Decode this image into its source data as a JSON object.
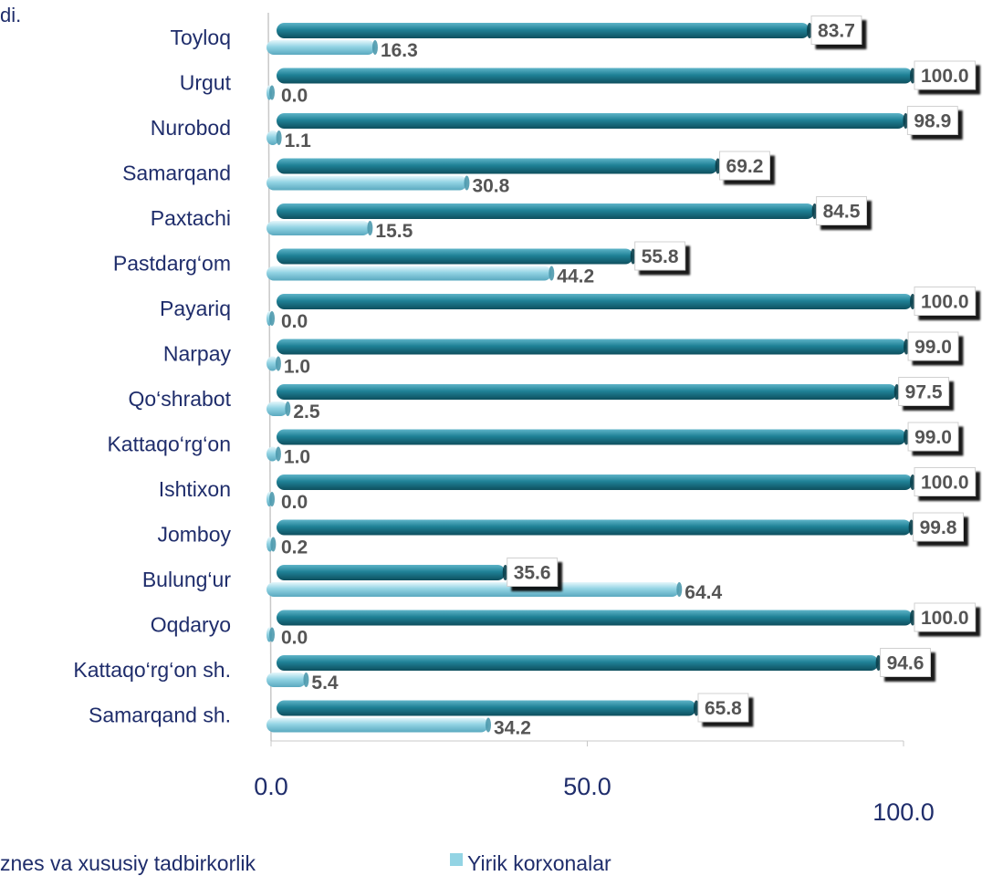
{
  "corner_text": "di.",
  "chart_data": {
    "type": "bar",
    "orientation": "horizontal",
    "categories": [
      "Toyloq",
      "Urgut",
      "Nurobod",
      "Samarqand",
      "Paxtachi",
      "Pastdarg‘om",
      "Payariq",
      "Narpay",
      "Qo‘shrabot",
      "Kattaqo‘rg‘on",
      "Ishtixon",
      "Jomboy",
      "Bulung‘ur",
      "Oqdaryo",
      "Kattaqo‘rg‘on  sh.",
      "Samarqand sh."
    ],
    "series": [
      {
        "name": "Kichik biznes va xususiy tadbirkorlik",
        "color": "#1f8196",
        "values": [
          83.7,
          100.0,
          98.9,
          69.2,
          84.5,
          55.8,
          100.0,
          99.0,
          97.5,
          99.0,
          100.0,
          99.8,
          35.6,
          100.0,
          94.6,
          65.8
        ],
        "labels": [
          "83.7",
          "100.0",
          "98.9",
          "69.2",
          "84.5",
          "55.8",
          "100.0",
          "99.0",
          "97.5",
          "99.0",
          "100.0",
          "99.8",
          "35.6",
          "100.0",
          "94.6",
          "65.8"
        ]
      },
      {
        "name": "Yirik korxonalar",
        "color": "#93d4e4",
        "values": [
          16.3,
          0.0,
          1.1,
          30.8,
          15.5,
          44.2,
          0.0,
          1.0,
          2.5,
          1.0,
          0.0,
          0.2,
          64.4,
          0.0,
          5.4,
          34.2
        ],
        "labels": [
          "16.3",
          "0.0",
          "1.1",
          "30.8",
          "15.5",
          "44.2",
          "0.0",
          "1.0",
          "2.5",
          "1.0",
          "0.0",
          "0.2",
          "64.4",
          "0.0",
          "5.4",
          "34.2"
        ]
      }
    ],
    "xlim": [
      0,
      100
    ],
    "x_ticks": [
      "0.0",
      "50.0",
      "100.0"
    ],
    "grid": false,
    "legend": {
      "placement": "bottom",
      "visible_text": [
        "znes va xususiy tadbirkorlik",
        "Yirik korxonalar"
      ]
    }
  }
}
